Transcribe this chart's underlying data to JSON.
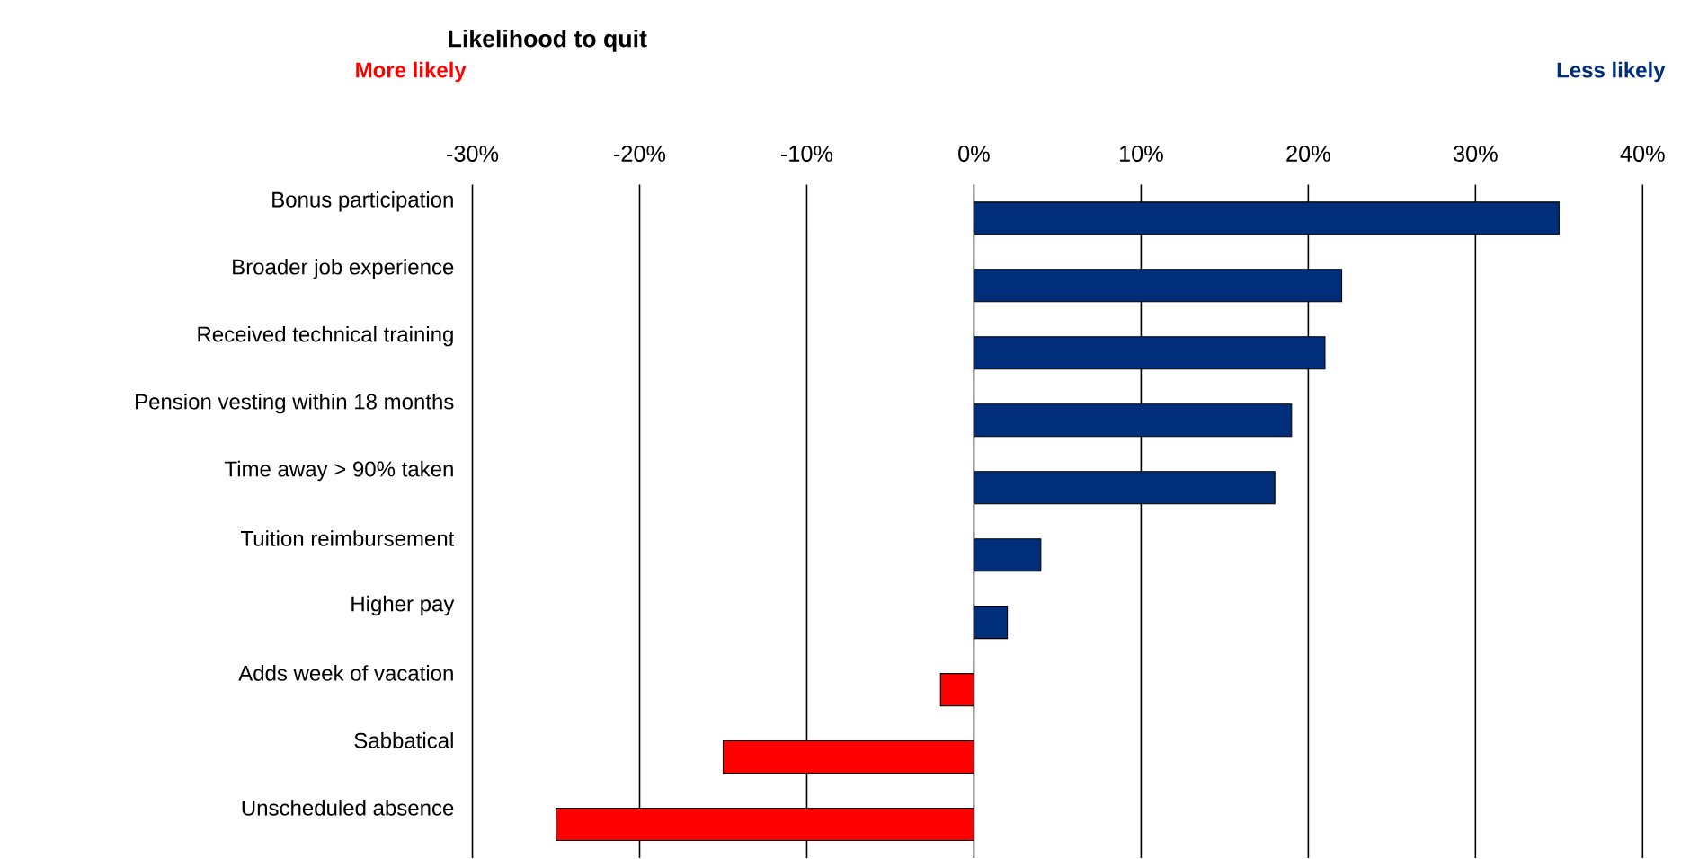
{
  "chart_data": {
    "type": "bar",
    "orientation": "horizontal",
    "title": "Likelihood to quit",
    "annotations": [
      "More likely",
      "Less likely"
    ],
    "categories": [
      "Bonus participation",
      "Broader job experience",
      "Received technical training",
      "Pension vesting within 18 months",
      "Time away > 90% taken",
      "Tuition reimbursement",
      "Higher pay",
      "Adds week of vacation",
      "Sabbatical",
      "Unscheduled absence"
    ],
    "values": [
      35,
      22,
      21,
      19,
      18,
      4,
      2,
      -2,
      -15,
      -25
    ],
    "colors": [
      "#002e7a",
      "#002e7a",
      "#002e7a",
      "#002e7a",
      "#002e7a",
      "#002e7a",
      "#002e7a",
      "#ff0000",
      "#ff0000",
      "#ff0000"
    ],
    "xlim": [
      -30,
      40
    ],
    "xticks": [
      {
        "value": -30,
        "label": "-30%"
      },
      {
        "value": -20,
        "label": "-20%"
      },
      {
        "value": -10,
        "label": "-10%"
      },
      {
        "value": 0,
        "label": "0%"
      },
      {
        "value": 10,
        "label": "10%"
      },
      {
        "value": 20,
        "label": "20%"
      },
      {
        "value": 30,
        "label": "30%"
      },
      {
        "value": 40,
        "label": "40%"
      }
    ],
    "grid": "x"
  }
}
